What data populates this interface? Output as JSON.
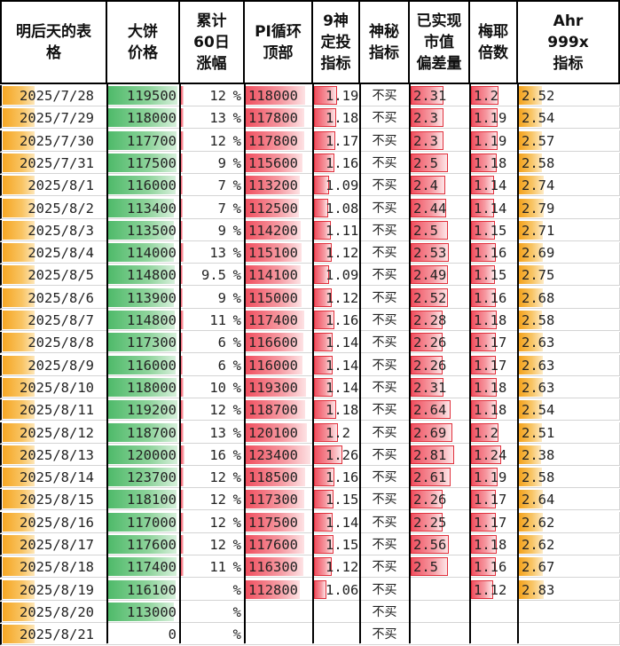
{
  "headers": [
    "明后天的表\n格",
    "大饼\n价格",
    "累计\n60日\n涨幅",
    "PI循环\n顶部",
    "9神\n定投\n指标",
    "神秘\n指标",
    "已实现\n市值\n偏差量",
    "梅耶\n倍数",
    "Ahr\n999x\n指标"
  ],
  "percent_sign": "%",
  "colors": {
    "date_bar": "#f5a623",
    "price_bar": "#4fba6a",
    "pi_bar": "#f05060",
    "ahr_bar": "#f4a21c",
    "border": "#000000"
  },
  "rows": [
    {
      "date": "2025/7/28",
      "price": "119500",
      "price_v": 119500,
      "gain": "12",
      "gain_v": 12,
      "pi": "118000",
      "pi_v": 118000,
      "nine": "1.19",
      "nine_v": 1.19,
      "mystery": "不买",
      "mvrv": "2.31",
      "mvrv_v": 2.31,
      "mayer": "1.2",
      "mayer_v": 1.2,
      "ahr": "2.52",
      "ahr_v": 2.52
    },
    {
      "date": "2025/7/29",
      "price": "118000",
      "price_v": 118000,
      "gain": "13",
      "gain_v": 13,
      "pi": "117800",
      "pi_v": 117800,
      "nine": "1.18",
      "nine_v": 1.18,
      "mystery": "不买",
      "mvrv": "2.3",
      "mvrv_v": 2.3,
      "mayer": "1.19",
      "mayer_v": 1.19,
      "ahr": "2.54",
      "ahr_v": 2.54
    },
    {
      "date": "2025/7/30",
      "price": "117700",
      "price_v": 117700,
      "gain": "12",
      "gain_v": 12,
      "pi": "117800",
      "pi_v": 117800,
      "nine": "1.17",
      "nine_v": 1.17,
      "mystery": "不买",
      "mvrv": "2.3",
      "mvrv_v": 2.3,
      "mayer": "1.19",
      "mayer_v": 1.19,
      "ahr": "2.57",
      "ahr_v": 2.57
    },
    {
      "date": "2025/7/31",
      "price": "117500",
      "price_v": 117500,
      "gain": "9",
      "gain_v": 9,
      "pi": "115600",
      "pi_v": 115600,
      "nine": "1.16",
      "nine_v": 1.16,
      "mystery": "不买",
      "mvrv": "2.5",
      "mvrv_v": 2.5,
      "mayer": "1.18",
      "mayer_v": 1.18,
      "ahr": "2.58",
      "ahr_v": 2.58
    },
    {
      "date": "2025/8/1",
      "price": "116000",
      "price_v": 116000,
      "gain": "7",
      "gain_v": 7,
      "pi": "113200",
      "pi_v": 113200,
      "nine": "1.09",
      "nine_v": 1.09,
      "mystery": "不买",
      "mvrv": "2.4",
      "mvrv_v": 2.4,
      "mayer": "1.14",
      "mayer_v": 1.14,
      "ahr": "2.74",
      "ahr_v": 2.74
    },
    {
      "date": "2025/8/2",
      "price": "113400",
      "price_v": 113400,
      "gain": "7",
      "gain_v": 7,
      "pi": "112500",
      "pi_v": 112500,
      "nine": "1.08",
      "nine_v": 1.08,
      "mystery": "不买",
      "mvrv": "2.44",
      "mvrv_v": 2.44,
      "mayer": "1.14",
      "mayer_v": 1.14,
      "ahr": "2.79",
      "ahr_v": 2.79
    },
    {
      "date": "2025/8/3",
      "price": "113500",
      "price_v": 113500,
      "gain": "9",
      "gain_v": 9,
      "pi": "114200",
      "pi_v": 114200,
      "nine": "1.11",
      "nine_v": 1.11,
      "mystery": "不买",
      "mvrv": "2.5",
      "mvrv_v": 2.5,
      "mayer": "1.15",
      "mayer_v": 1.15,
      "ahr": "2.71",
      "ahr_v": 2.71
    },
    {
      "date": "2025/8/4",
      "price": "114000",
      "price_v": 114000,
      "gain": "13",
      "gain_v": 13,
      "pi": "115100",
      "pi_v": 115100,
      "nine": "1.12",
      "nine_v": 1.12,
      "mystery": "不买",
      "mvrv": "2.53",
      "mvrv_v": 2.53,
      "mayer": "1.16",
      "mayer_v": 1.16,
      "ahr": "2.69",
      "ahr_v": 2.69
    },
    {
      "date": "2025/8/5",
      "price": "114800",
      "price_v": 114800,
      "gain": "9.5",
      "gain_v": 9.5,
      "pi": "114100",
      "pi_v": 114100,
      "nine": "1.09",
      "nine_v": 1.09,
      "mystery": "不买",
      "mvrv": "2.49",
      "mvrv_v": 2.49,
      "mayer": "1.15",
      "mayer_v": 1.15,
      "ahr": "2.75",
      "ahr_v": 2.75
    },
    {
      "date": "2025/8/6",
      "price": "113900",
      "price_v": 113900,
      "gain": "9",
      "gain_v": 9,
      "pi": "115000",
      "pi_v": 115000,
      "nine": "1.12",
      "nine_v": 1.12,
      "mystery": "不买",
      "mvrv": "2.52",
      "mvrv_v": 2.52,
      "mayer": "1.16",
      "mayer_v": 1.16,
      "ahr": "2.68",
      "ahr_v": 2.68
    },
    {
      "date": "2025/8/7",
      "price": "114800",
      "price_v": 114800,
      "gain": "11",
      "gain_v": 11,
      "pi": "117400",
      "pi_v": 117400,
      "nine": "1.16",
      "nine_v": 1.16,
      "mystery": "不买",
      "mvrv": "2.28",
      "mvrv_v": 2.28,
      "mayer": "1.18",
      "mayer_v": 1.18,
      "ahr": "2.58",
      "ahr_v": 2.58
    },
    {
      "date": "2025/8/8",
      "price": "117300",
      "price_v": 117300,
      "gain": "6",
      "gain_v": 6,
      "pi": "116600",
      "pi_v": 116600,
      "nine": "1.14",
      "nine_v": 1.14,
      "mystery": "不买",
      "mvrv": "2.26",
      "mvrv_v": 2.26,
      "mayer": "1.17",
      "mayer_v": 1.17,
      "ahr": "2.63",
      "ahr_v": 2.63
    },
    {
      "date": "2025/8/9",
      "price": "116000",
      "price_v": 116000,
      "gain": "6",
      "gain_v": 6,
      "pi": "116000",
      "pi_v": 116000,
      "nine": "1.14",
      "nine_v": 1.14,
      "mystery": "不买",
      "mvrv": "2.26",
      "mvrv_v": 2.26,
      "mayer": "1.17",
      "mayer_v": 1.17,
      "ahr": "2.63",
      "ahr_v": 2.63
    },
    {
      "date": "2025/8/10",
      "price": "118000",
      "price_v": 118000,
      "gain": "10",
      "gain_v": 10,
      "pi": "119300",
      "pi_v": 119300,
      "nine": "1.14",
      "nine_v": 1.14,
      "mystery": "不买",
      "mvrv": "2.31",
      "mvrv_v": 2.31,
      "mayer": "1.18",
      "mayer_v": 1.18,
      "ahr": "2.63",
      "ahr_v": 2.63
    },
    {
      "date": "2025/8/11",
      "price": "119200",
      "price_v": 119200,
      "gain": "12",
      "gain_v": 12,
      "pi": "118700",
      "pi_v": 118700,
      "nine": "1.18",
      "nine_v": 1.18,
      "mystery": "不买",
      "mvrv": "2.64",
      "mvrv_v": 2.64,
      "mayer": "1.18",
      "mayer_v": 1.18,
      "ahr": "2.54",
      "ahr_v": 2.54
    },
    {
      "date": "2025/8/12",
      "price": "118700",
      "price_v": 118700,
      "gain": "13",
      "gain_v": 13,
      "pi": "120100",
      "pi_v": 120100,
      "nine": "1.2",
      "nine_v": 1.2,
      "mystery": "不买",
      "mvrv": "2.69",
      "mvrv_v": 2.69,
      "mayer": "1.2",
      "mayer_v": 1.2,
      "ahr": "2.51",
      "ahr_v": 2.51
    },
    {
      "date": "2025/8/13",
      "price": "120000",
      "price_v": 120000,
      "gain": "16",
      "gain_v": 16,
      "pi": "123400",
      "pi_v": 123400,
      "nine": "1.26",
      "nine_v": 1.26,
      "mystery": "不买",
      "mvrv": "2.81",
      "mvrv_v": 2.81,
      "mayer": "1.24",
      "mayer_v": 1.24,
      "ahr": "2.38",
      "ahr_v": 2.38
    },
    {
      "date": "2025/8/14",
      "price": "123700",
      "price_v": 123700,
      "gain": "12",
      "gain_v": 12,
      "pi": "118500",
      "pi_v": 118500,
      "nine": "1.16",
      "nine_v": 1.16,
      "mystery": "不买",
      "mvrv": "2.61",
      "mvrv_v": 2.61,
      "mayer": "1.19",
      "mayer_v": 1.19,
      "ahr": "2.58",
      "ahr_v": 2.58
    },
    {
      "date": "2025/8/15",
      "price": "118100",
      "price_v": 118100,
      "gain": "12",
      "gain_v": 12,
      "pi": "117300",
      "pi_v": 117300,
      "nine": "1.15",
      "nine_v": 1.15,
      "mystery": "不买",
      "mvrv": "2.26",
      "mvrv_v": 2.26,
      "mayer": "1.17",
      "mayer_v": 1.17,
      "ahr": "2.64",
      "ahr_v": 2.64
    },
    {
      "date": "2025/8/16",
      "price": "117000",
      "price_v": 117000,
      "gain": "12",
      "gain_v": 12,
      "pi": "117500",
      "pi_v": 117500,
      "nine": "1.14",
      "nine_v": 1.14,
      "mystery": "不买",
      "mvrv": "2.25",
      "mvrv_v": 2.25,
      "mayer": "1.17",
      "mayer_v": 1.17,
      "ahr": "2.62",
      "ahr_v": 2.62
    },
    {
      "date": "2025/8/17",
      "price": "117600",
      "price_v": 117600,
      "gain": "12",
      "gain_v": 12,
      "pi": "117600",
      "pi_v": 117600,
      "nine": "1.15",
      "nine_v": 1.15,
      "mystery": "不买",
      "mvrv": "2.56",
      "mvrv_v": 2.56,
      "mayer": "1.18",
      "mayer_v": 1.18,
      "ahr": "2.62",
      "ahr_v": 2.62
    },
    {
      "date": "2025/8/18",
      "price": "117400",
      "price_v": 117400,
      "gain": "11",
      "gain_v": 11,
      "pi": "116300",
      "pi_v": 116300,
      "nine": "1.12",
      "nine_v": 1.12,
      "mystery": "不买",
      "mvrv": "2.5",
      "mvrv_v": 2.5,
      "mayer": "1.16",
      "mayer_v": 1.16,
      "ahr": "2.67",
      "ahr_v": 2.67
    },
    {
      "date": "2025/8/19",
      "price": "116100",
      "price_v": 116100,
      "gain": "",
      "gain_v": 0,
      "pi": "112800",
      "pi_v": 112800,
      "nine": "1.06",
      "nine_v": 1.06,
      "mystery": "不买",
      "mvrv": "",
      "mvrv_v": 0,
      "mayer": "1.12",
      "mayer_v": 1.12,
      "ahr": "2.83",
      "ahr_v": 2.83
    },
    {
      "date": "2025/8/20",
      "price": "113000",
      "price_v": 113000,
      "gain": "",
      "gain_v": 0,
      "pi": "",
      "pi_v": 0,
      "nine": "",
      "nine_v": 0,
      "mystery": "不买",
      "mvrv": "",
      "mvrv_v": 0,
      "mayer": "",
      "mayer_v": 0,
      "ahr": "",
      "ahr_v": 0
    },
    {
      "date": "2025/8/21",
      "price": "0",
      "price_v": 0,
      "gain": "",
      "gain_v": 0,
      "pi": "",
      "pi_v": 0,
      "nine": "",
      "nine_v": 0,
      "mystery": "不买",
      "mvrv": "",
      "mvrv_v": 0,
      "mayer": "",
      "mayer_v": 0,
      "ahr": "",
      "ahr_v": 0
    }
  ]
}
